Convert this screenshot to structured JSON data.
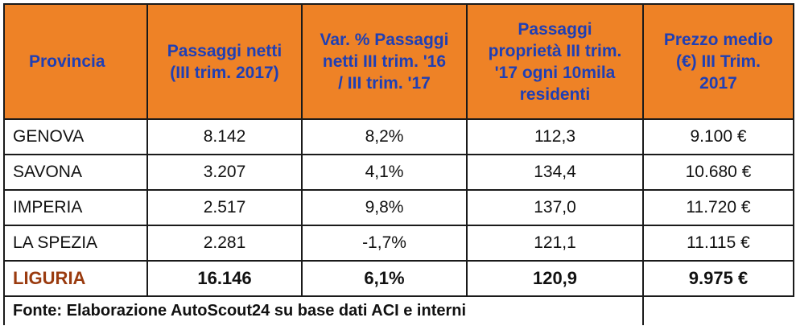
{
  "table": {
    "headers": {
      "provincia": [
        "Provincia"
      ],
      "passaggi_netti": [
        "Passaggi netti",
        "(III trim. 2017)"
      ],
      "var_pct": [
        "Var. % Passaggi",
        "netti III trim. '16",
        "/ III trim. '17"
      ],
      "passaggi_residenti": [
        "Passaggi",
        "proprietà III trim.",
        "'17 ogni 10mila",
        "residenti"
      ],
      "prezzo_medio": [
        "Prezzo medio",
        "(€)  III Trim.",
        "2017"
      ]
    },
    "rows": [
      {
        "provincia": "GENOVA",
        "passaggi_netti": "8.142",
        "var_pct": "8,2%",
        "passaggi_residenti": "112,3",
        "prezzo_medio": "9.100 €"
      },
      {
        "provincia": "SAVONA",
        "passaggi_netti": "3.207",
        "var_pct": "4,1%",
        "passaggi_residenti": "134,4",
        "prezzo_medio": "10.680 €"
      },
      {
        "provincia": "IMPERIA",
        "passaggi_netti": "2.517",
        "var_pct": "9,8%",
        "passaggi_residenti": "137,0",
        "prezzo_medio": "11.720 €"
      },
      {
        "provincia": "LA SPEZIA",
        "passaggi_netti": "2.281",
        "var_pct": "-1,7%",
        "passaggi_residenti": "121,1",
        "prezzo_medio": "11.115 €"
      }
    ],
    "total": {
      "provincia": "LIGURIA",
      "passaggi_netti": "16.146",
      "var_pct": "6,1%",
      "passaggi_residenti": "120,9",
      "prezzo_medio": "9.975 €"
    },
    "source": "Fonte: Elaborazione AutoScout24 su base dati ACI e interni"
  },
  "colors": {
    "header_bg": "#ee8226",
    "header_text": "#1f3fb5",
    "total_label": "#9a3b0f",
    "border": "#1a1a1a"
  }
}
